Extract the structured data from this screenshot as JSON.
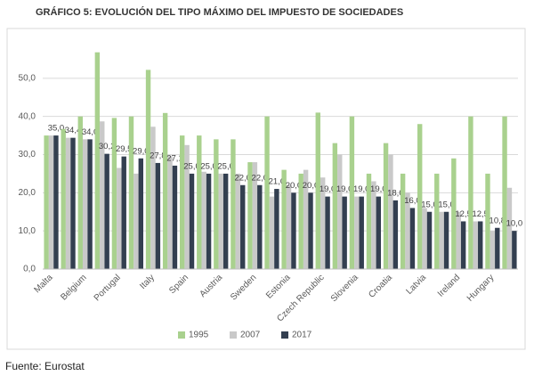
{
  "chart_data": {
    "type": "bar",
    "title": "GRÁFICO 5: EVOLUCIÓN DEL TIPO MÁXIMO DEL IMPUESTO DE SOCIEDADES",
    "source": "Fuente: Eurostat",
    "categories": [
      "Malta",
      null,
      "Belgium",
      null,
      "Portugal",
      null,
      "Italy",
      null,
      "Spain",
      null,
      "Austria",
      null,
      "Sweden",
      null,
      "Estonia",
      null,
      "Czech Republic",
      null,
      "Slovenia",
      null,
      "Croatia",
      null,
      "Latvia",
      null,
      "Ireland",
      null,
      "Hungary",
      null
    ],
    "series": [
      {
        "name": "1995",
        "color": "#a9d18e",
        "values": [
          35,
          36.7,
          40,
          56.8,
          39.6,
          40,
          52.2,
          40.9,
          35,
          35,
          34,
          34,
          28,
          40,
          26,
          25,
          41,
          33,
          40,
          25,
          33,
          25,
          38,
          25,
          29,
          40,
          25,
          40
        ]
      },
      {
        "name": "2007",
        "color": "#c9c9c9",
        "values": [
          35,
          34.4,
          34,
          38.7,
          26.5,
          25,
          37.3,
          29.6,
          32.5,
          25.5,
          25,
          25,
          28,
          19,
          22,
          26,
          24,
          30,
          19,
          23,
          30,
          20,
          16,
          15,
          15,
          12.5,
          10,
          21.3
        ]
      },
      {
        "name": "2017",
        "color": "#333f50",
        "values": [
          35,
          34.4,
          34,
          30.2,
          29.5,
          29,
          27.8,
          27.1,
          25,
          25,
          25,
          22,
          22,
          21,
          20,
          20,
          19,
          19,
          19,
          19,
          18,
          16,
          15,
          15,
          12.5,
          12.5,
          10.8,
          10
        ],
        "value_labels": [
          "35,0",
          "34,4",
          "34,0",
          "30,2",
          "29,5",
          "29,0",
          "27,8",
          "27,1",
          "25,0",
          "25,0",
          "25,0",
          "22,0",
          "22,0",
          "21,0",
          "20,0",
          "20,0",
          "19,0",
          "19,0",
          "19,0",
          "19,0",
          "18,0",
          "16,0",
          "15,0",
          "15,0",
          "12,5",
          "12,5",
          "10,8",
          "10,0"
        ]
      }
    ],
    "ylim": [
      0,
      60
    ],
    "yticks": [
      {
        "value": 0,
        "label": "0,0"
      },
      {
        "value": 10,
        "label": "10,0"
      },
      {
        "value": 20,
        "label": "20,0"
      },
      {
        "value": 30,
        "label": "30,0"
      },
      {
        "value": 40,
        "label": "40,0"
      },
      {
        "value": 50,
        "label": "50,0"
      }
    ],
    "grid": true,
    "legend": "bottom"
  }
}
